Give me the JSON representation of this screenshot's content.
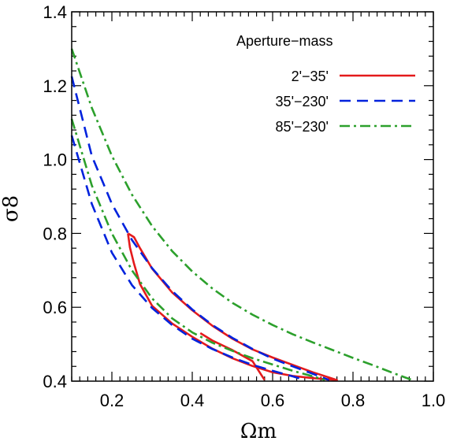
{
  "chart_data": {
    "type": "line",
    "xlabel": "Ωm",
    "ylabel": "σ8",
    "xlim": [
      0.1,
      1.0
    ],
    "ylim": [
      0.4,
      1.4
    ],
    "x_ticks": [
      "0.2",
      "0.4",
      "0.6",
      "0.8",
      "1.0"
    ],
    "y_ticks": [
      "0.4",
      "0.6",
      "0.8",
      "1.0",
      "1.2",
      "1.4"
    ],
    "grid": false,
    "legend": {
      "title": "Aperture−mass",
      "placement": "top-right"
    },
    "series": [
      {
        "name": "2'−35'",
        "color": "#e41a1c",
        "style": "solid",
        "contours": [
          [
            [
              0.24,
              0.8
            ],
            [
              0.255,
              0.79
            ],
            [
              0.27,
              0.76
            ],
            [
              0.3,
              0.705
            ],
            [
              0.35,
              0.64
            ],
            [
              0.4,
              0.592
            ],
            [
              0.45,
              0.55
            ],
            [
              0.5,
              0.515
            ],
            [
              0.55,
              0.486
            ],
            [
              0.6,
              0.464
            ],
            [
              0.65,
              0.444
            ],
            [
              0.7,
              0.424
            ],
            [
              0.76,
              0.403
            ],
            [
              0.7,
              0.408
            ],
            [
              0.65,
              0.414
            ],
            [
              0.6,
              0.424
            ],
            [
              0.55,
              0.441
            ],
            [
              0.5,
              0.462
            ],
            [
              0.45,
              0.488
            ],
            [
              0.4,
              0.52
            ],
            [
              0.35,
              0.556
            ],
            [
              0.3,
              0.604
            ],
            [
              0.27,
              0.663
            ],
            [
              0.255,
              0.718
            ],
            [
              0.245,
              0.762
            ],
            [
              0.24,
              0.8
            ]
          ],
          [
            [
              0.42,
              0.53
            ],
            [
              0.45,
              0.51
            ],
            [
              0.5,
              0.484
            ],
            [
              0.55,
              0.454
            ],
            [
              0.58,
              0.403
            ]
          ]
        ]
      },
      {
        "name": "35'−230'",
        "color": "#0022dd",
        "style": "dashed",
        "contours": [
          [
            [
              0.1,
              1.225
            ],
            [
              0.15,
              1.01
            ],
            [
              0.2,
              0.88
            ],
            [
              0.25,
              0.782
            ],
            [
              0.3,
              0.706
            ],
            [
              0.35,
              0.644
            ],
            [
              0.4,
              0.594
            ],
            [
              0.45,
              0.552
            ],
            [
              0.5,
              0.517
            ],
            [
              0.55,
              0.487
            ],
            [
              0.6,
              0.461
            ],
            [
              0.65,
              0.44
            ],
            [
              0.7,
              0.42
            ],
            [
              0.74,
              0.403
            ]
          ],
          [
            [
              0.1,
              1.065
            ],
            [
              0.15,
              0.88
            ],
            [
              0.2,
              0.748
            ],
            [
              0.25,
              0.66
            ],
            [
              0.3,
              0.598
            ],
            [
              0.35,
              0.552
            ],
            [
              0.4,
              0.515
            ],
            [
              0.45,
              0.487
            ],
            [
              0.5,
              0.464
            ],
            [
              0.55,
              0.444
            ],
            [
              0.6,
              0.428
            ],
            [
              0.65,
              0.413
            ],
            [
              0.68,
              0.403
            ]
          ]
        ]
      },
      {
        "name": "85'−230'",
        "color": "#2ca02c",
        "style": "dashdot",
        "contours": [
          [
            [
              0.1,
              1.3
            ],
            [
              0.15,
              1.14
            ],
            [
              0.2,
              1.01
            ],
            [
              0.25,
              0.905
            ],
            [
              0.3,
              0.82
            ],
            [
              0.35,
              0.752
            ],
            [
              0.4,
              0.697
            ],
            [
              0.45,
              0.651
            ],
            [
              0.5,
              0.612
            ],
            [
              0.55,
              0.58
            ],
            [
              0.6,
              0.552
            ],
            [
              0.65,
              0.527
            ],
            [
              0.7,
              0.505
            ],
            [
              0.75,
              0.484
            ],
            [
              0.8,
              0.463
            ],
            [
              0.85,
              0.443
            ],
            [
              0.9,
              0.422
            ],
            [
              0.95,
              0.402
            ]
          ],
          [
            [
              0.1,
              1.11
            ],
            [
              0.15,
              0.93
            ],
            [
              0.2,
              0.8
            ],
            [
              0.25,
              0.7
            ],
            [
              0.3,
              0.624
            ],
            [
              0.35,
              0.57
            ],
            [
              0.4,
              0.532
            ],
            [
              0.45,
              0.504
            ],
            [
              0.5,
              0.482
            ],
            [
              0.55,
              0.462
            ],
            [
              0.6,
              0.445
            ],
            [
              0.65,
              0.428
            ],
            [
              0.7,
              0.413
            ],
            [
              0.73,
              0.403
            ]
          ]
        ]
      }
    ]
  }
}
